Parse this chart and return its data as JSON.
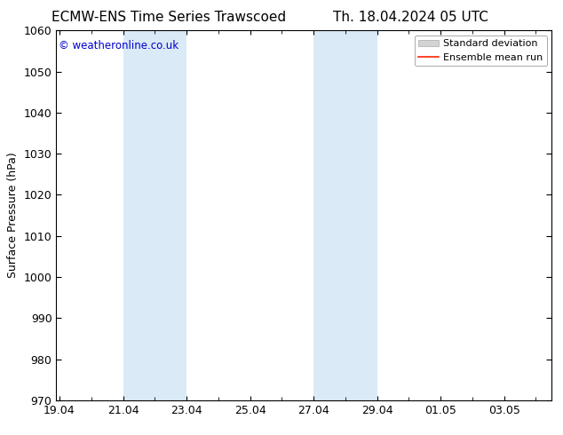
{
  "title_left": "ECMW-ENS Time Series Trawscoed",
  "title_right": "Th. 18.04.2024 05 UTC",
  "ylabel": "Surface Pressure (hPa)",
  "ylim": [
    970,
    1060
  ],
  "yticks": [
    970,
    980,
    990,
    1000,
    1010,
    1020,
    1030,
    1040,
    1050,
    1060
  ],
  "xtick_labels": [
    "19.04",
    "21.04",
    "23.04",
    "25.04",
    "27.04",
    "29.04",
    "01.05",
    "03.05"
  ],
  "xtick_positions": [
    0,
    2,
    4,
    6,
    8,
    10,
    12,
    14
  ],
  "xlim": [
    -0.1,
    15.5
  ],
  "shaded_bands": [
    {
      "x_start": 2,
      "x_end": 4
    },
    {
      "x_start": 8,
      "x_end": 10
    }
  ],
  "shaded_color": "#daeaf7",
  "background_color": "#ffffff",
  "watermark_text": "© weatheronline.co.uk",
  "watermark_color": "#0000cc",
  "legend_std_dev_color": "#d3d3d3",
  "legend_mean_color": "#ff2200",
  "title_fontsize": 11,
  "label_fontsize": 9,
  "tick_fontsize": 9,
  "legend_fontsize": 8
}
